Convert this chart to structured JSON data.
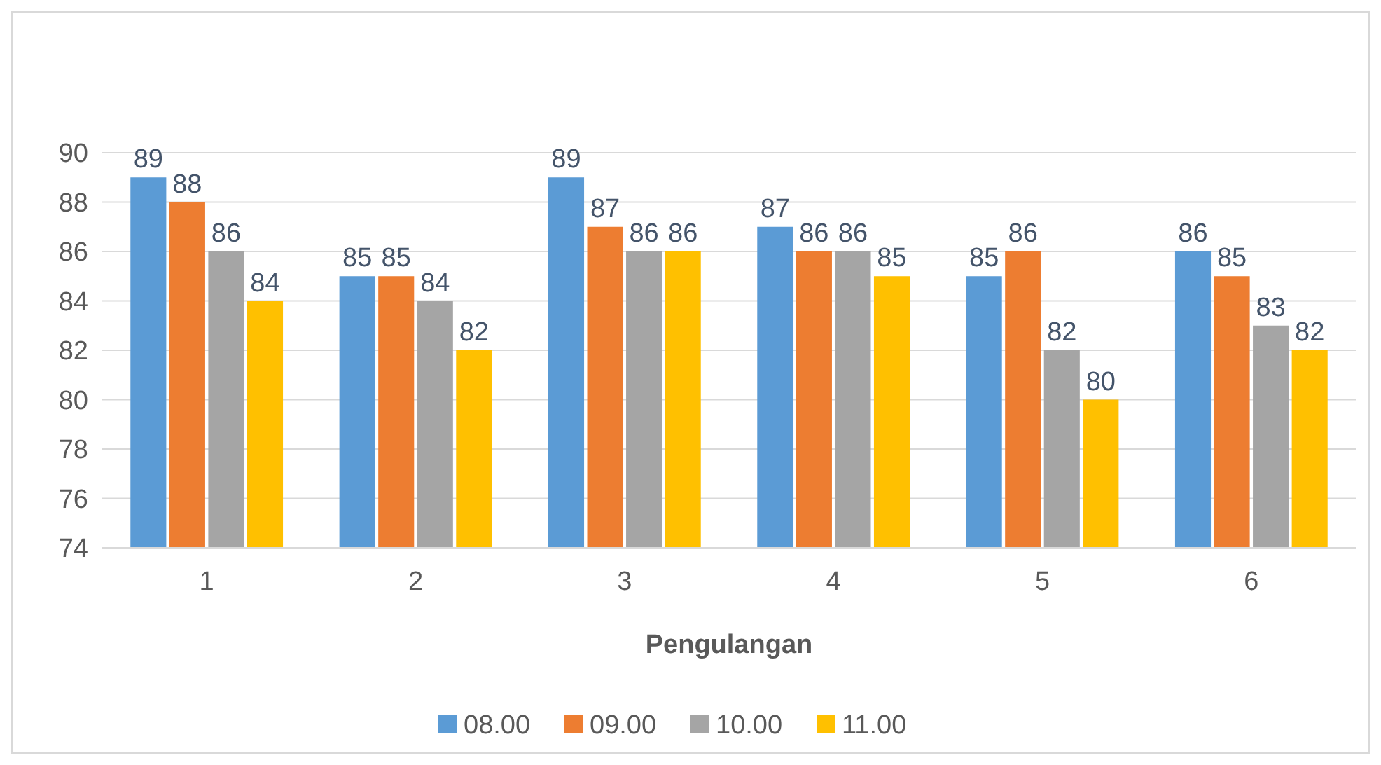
{
  "chart_data": {
    "type": "bar",
    "xlabel": "Pengulangan",
    "categories": [
      "1",
      "2",
      "3",
      "4",
      "5",
      "6"
    ],
    "series": [
      {
        "name": "08.00",
        "color": "#5b9bd5",
        "values": [
          89,
          85,
          89,
          87,
          85,
          86
        ]
      },
      {
        "name": "09.00",
        "color": "#ed7d31",
        "values": [
          88,
          85,
          87,
          86,
          86,
          85
        ]
      },
      {
        "name": "10.00",
        "color": "#a5a5a5",
        "values": [
          86,
          84,
          86,
          86,
          82,
          83
        ]
      },
      {
        "name": "11.00",
        "color": "#ffc000",
        "values": [
          84,
          82,
          86,
          85,
          80,
          82
        ]
      }
    ],
    "ylim": [
      74,
      90
    ],
    "yticks": [
      74,
      76,
      78,
      80,
      82,
      84,
      86,
      88,
      90
    ],
    "grid": "y",
    "legend": "bottom",
    "data_labels": true
  }
}
